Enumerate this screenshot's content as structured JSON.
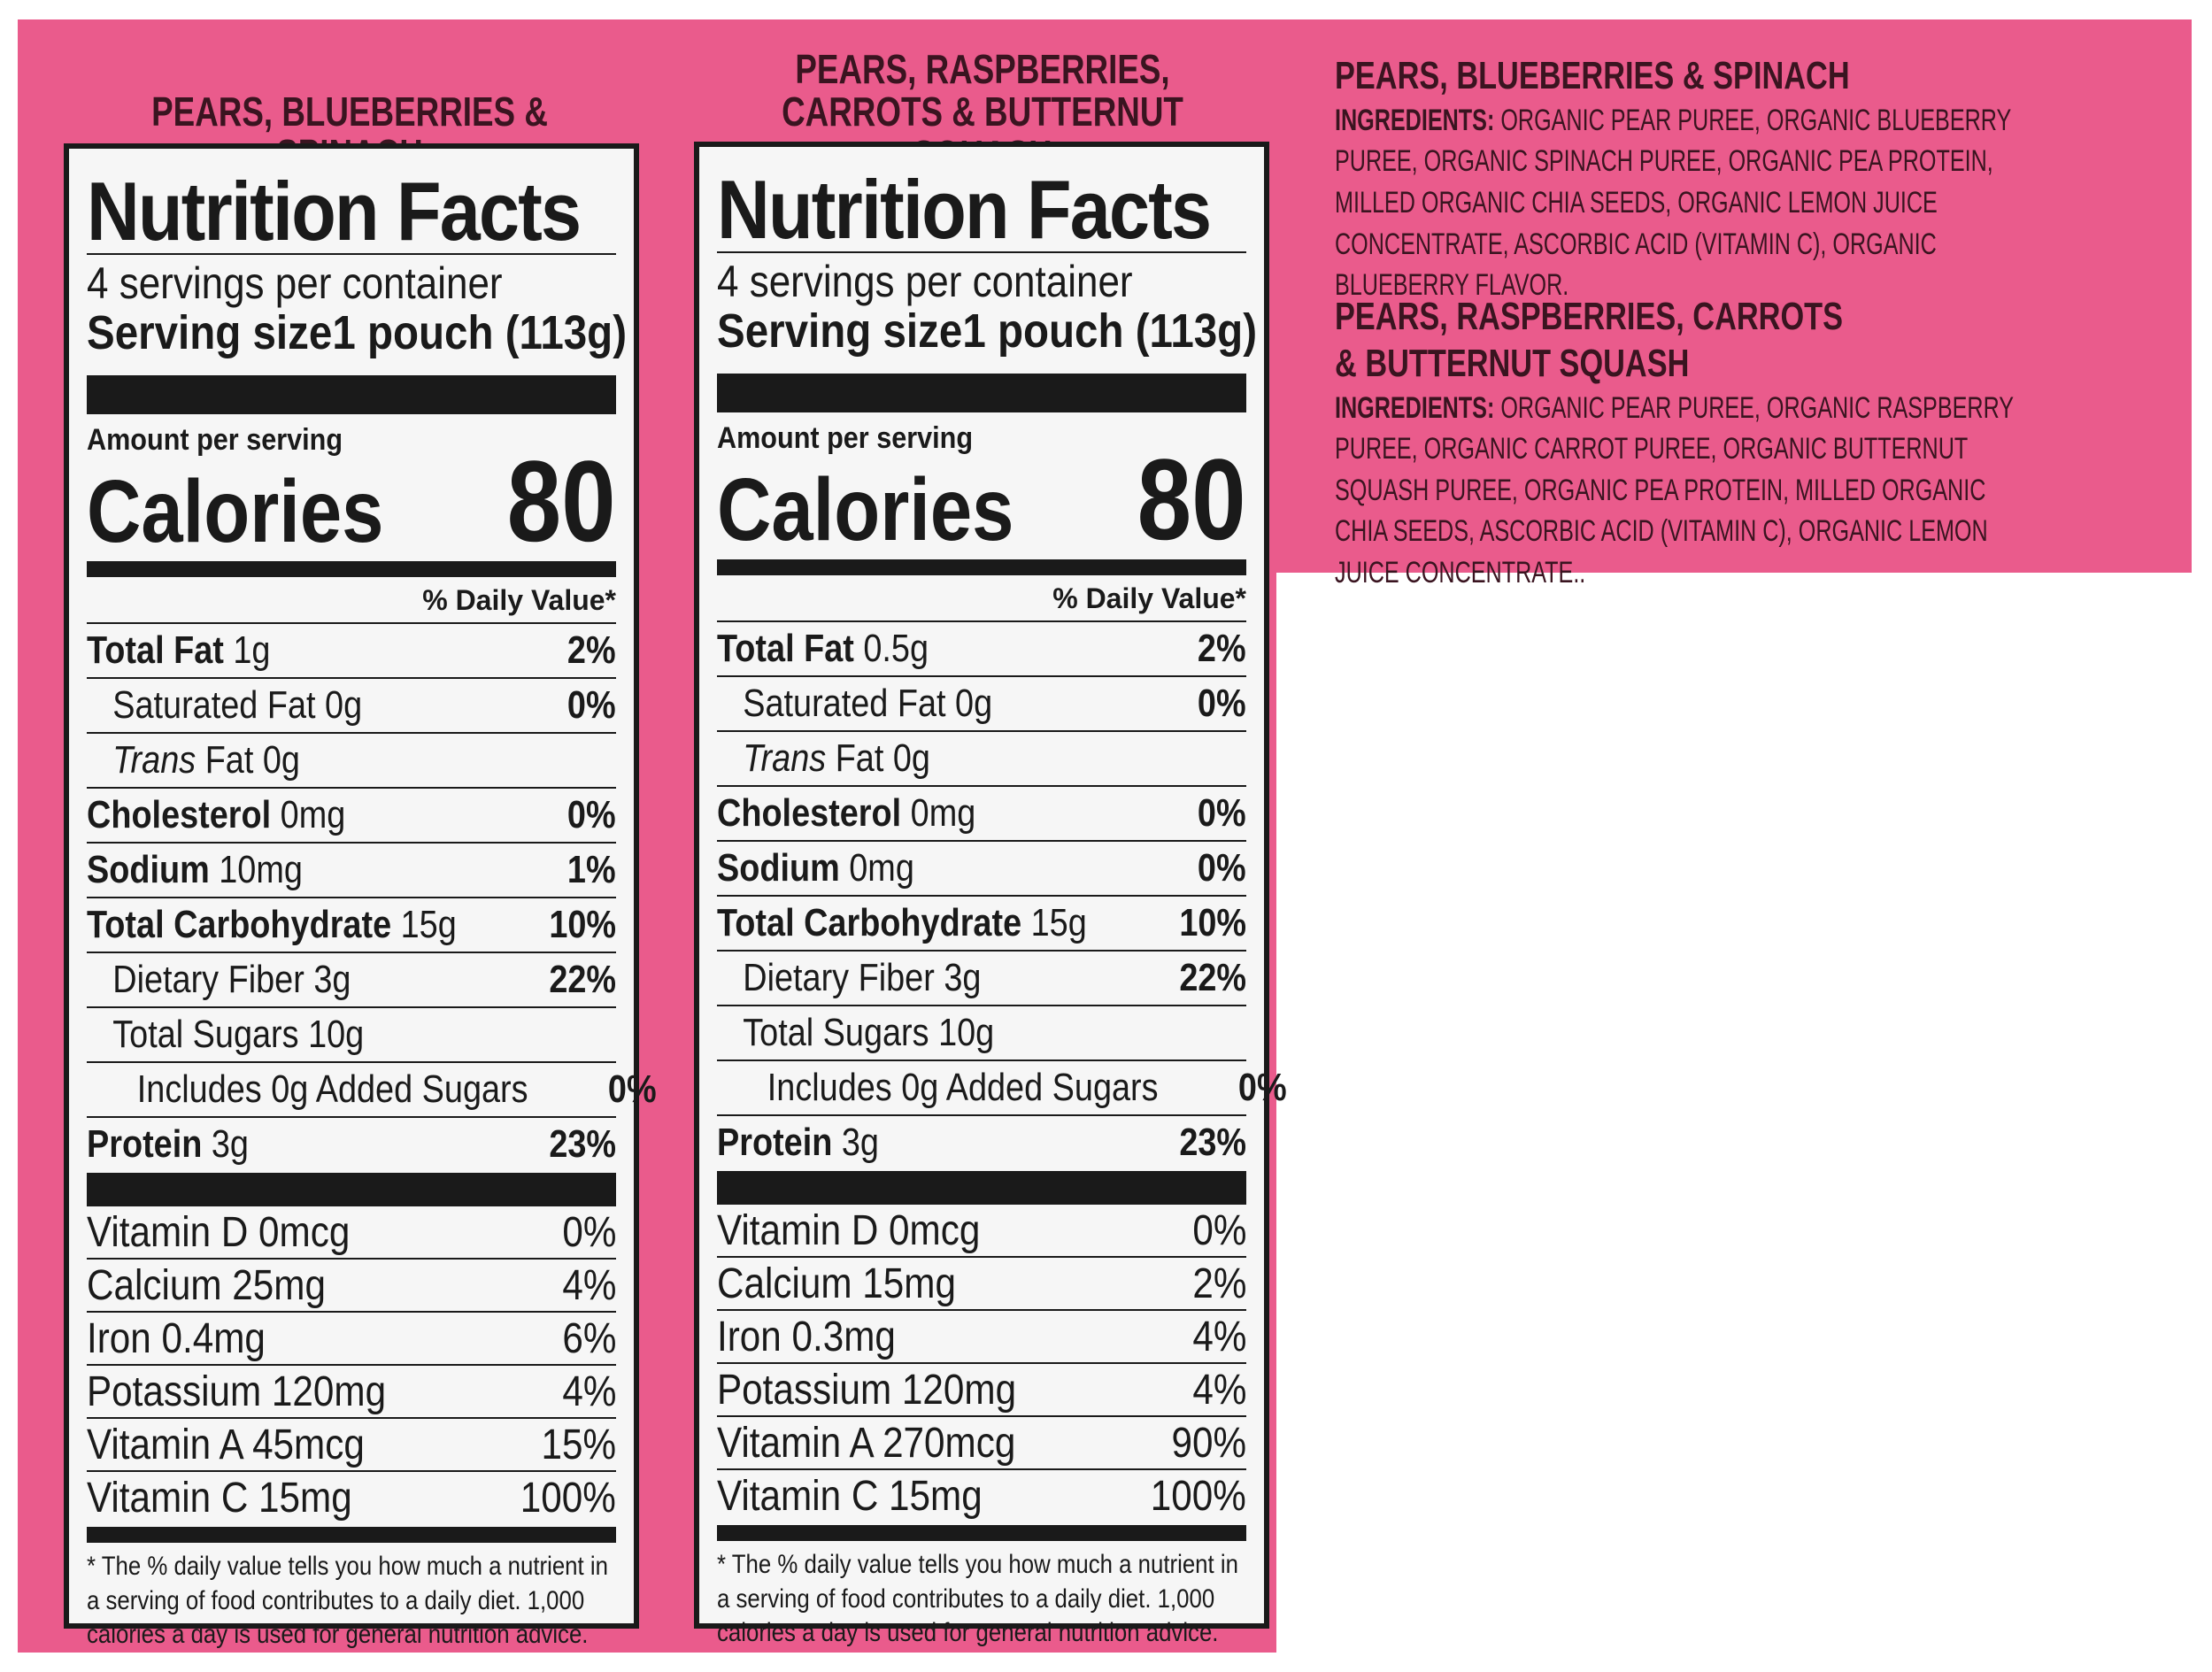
{
  "panels": [
    {
      "flavor": "PEARS, BLUEBERRIES & SPINACH",
      "title": "Nutrition Facts",
      "servings": "4 servings per container",
      "serving_size_label": "Serving size",
      "serving_size_value": "1 pouch (113g)",
      "amount_label": "Amount per serving",
      "calories_label": "Calories",
      "calories_value": "80",
      "dv_header": "% Daily Value*",
      "nutrients": [
        {
          "name": "Total Fat",
          "amount": "1g",
          "dv": "2%"
        },
        {
          "name": "Saturated Fat 0g",
          "amount": "",
          "dv": "0%"
        },
        {
          "name": "Trans",
          "amount": "Fat 0g",
          "dv": ""
        },
        {
          "name": "Cholesterol",
          "amount": "0mg",
          "dv": "0%"
        },
        {
          "name": "Sodium",
          "amount": "10mg",
          "dv": "1%"
        },
        {
          "name": "Total Carbohydrate",
          "amount": "15g",
          "dv": "10%"
        },
        {
          "name": "Dietary Fiber 3g",
          "amount": "",
          "dv": "22%"
        },
        {
          "name": "Total Sugars 10g",
          "amount": "",
          "dv": ""
        },
        {
          "name": "Includes 0g Added Sugars",
          "amount": "",
          "dv": "0%"
        },
        {
          "name": "Protein",
          "amount": "3g",
          "dv": "23%"
        }
      ],
      "vitamins": [
        {
          "name": "Vitamin D 0mcg",
          "dv": "0%"
        },
        {
          "name": "Calcium 25mg",
          "dv": "4%"
        },
        {
          "name": "Iron 0.4mg",
          "dv": "6%"
        },
        {
          "name": "Potassium 120mg",
          "dv": "4%"
        },
        {
          "name": "Vitamin A 45mcg",
          "dv": "15%"
        },
        {
          "name": "Vitamin C 15mg",
          "dv": "100%"
        }
      ],
      "footnote": "* The % daily value tells you how much a nutrient in a serving of food contributes to a daily diet. 1,000 calories a day is used for general nutrition advice."
    },
    {
      "flavor_line1": "PEARS, RASPBERRIES,",
      "flavor_line2": "CARROTS & BUTTERNUT SQUASH",
      "title": "Nutrition Facts",
      "servings": "4 servings per container",
      "serving_size_label": "Serving size",
      "serving_size_value": "1 pouch (113g)",
      "amount_label": "Amount per serving",
      "calories_label": "Calories",
      "calories_value": "80",
      "dv_header": "% Daily Value*",
      "nutrients": [
        {
          "name": "Total Fat",
          "amount": "0.5g",
          "dv": "2%"
        },
        {
          "name": "Saturated Fat 0g",
          "amount": "",
          "dv": "0%"
        },
        {
          "name": "Trans",
          "amount": "Fat 0g",
          "dv": ""
        },
        {
          "name": "Cholesterol",
          "amount": "0mg",
          "dv": "0%"
        },
        {
          "name": "Sodium",
          "amount": "0mg",
          "dv": "0%"
        },
        {
          "name": "Total Carbohydrate",
          "amount": "15g",
          "dv": "10%"
        },
        {
          "name": "Dietary Fiber 3g",
          "amount": "",
          "dv": "22%"
        },
        {
          "name": "Total Sugars 10g",
          "amount": "",
          "dv": ""
        },
        {
          "name": "Includes 0g Added Sugars",
          "amount": "",
          "dv": "0%"
        },
        {
          "name": "Protein",
          "amount": "3g",
          "dv": "23%"
        }
      ],
      "vitamins": [
        {
          "name": "Vitamin D 0mcg",
          "dv": "0%"
        },
        {
          "name": "Calcium 15mg",
          "dv": "2%"
        },
        {
          "name": "Iron 0.3mg",
          "dv": "4%"
        },
        {
          "name": "Potassium 120mg",
          "dv": "4%"
        },
        {
          "name": "Vitamin A 270mcg",
          "dv": "90%"
        },
        {
          "name": "Vitamin C 15mg",
          "dv": "100%"
        }
      ],
      "footnote": "* The % daily value tells you how much a nutrient in a serving of food contributes to a daily diet. 1,000 calories a day is used for general nutrition advice."
    }
  ],
  "ingredients": [
    {
      "title": "PEARS, BLUEBERRIES & SPINACH",
      "label": "INGREDIENTS:",
      "text": "ORGANIC PEAR PUREE, ORGANIC BLUEBERRY PUREE, ORGANIC SPINACH PUREE, ORGANIC PEA PROTEIN, MILLED ORGANIC CHIA SEEDS, ORGANIC LEMON JUICE CONCENTRATE, ASCORBIC ACID (VITAMIN C), ORGANIC BLUEBERRY FLAVOR."
    },
    {
      "title_line1": "PEARS, RASPBERRIES, CARROTS",
      "title_line2": "& BUTTERNUT SQUASH",
      "label": "INGREDIENTS:",
      "text": "ORGANIC PEAR PUREE, ORGANIC RASPBERRY PUREE, ORGANIC CARROT PUREE, ORGANIC BUTTERNUT SQUASH PUREE, ORGANIC PEA PROTEIN, MILLED ORGANIC CHIA SEEDS, ASCORBIC ACID (VITAMIN C), ORGANIC LEMON JUICE CONCENTRATE.."
    }
  ],
  "colors": {
    "label_pink": "#ea5b8c",
    "panel_bg": "#f6f6f6",
    "ink": "#1a1a1a",
    "dark_text": "#3a1420"
  }
}
